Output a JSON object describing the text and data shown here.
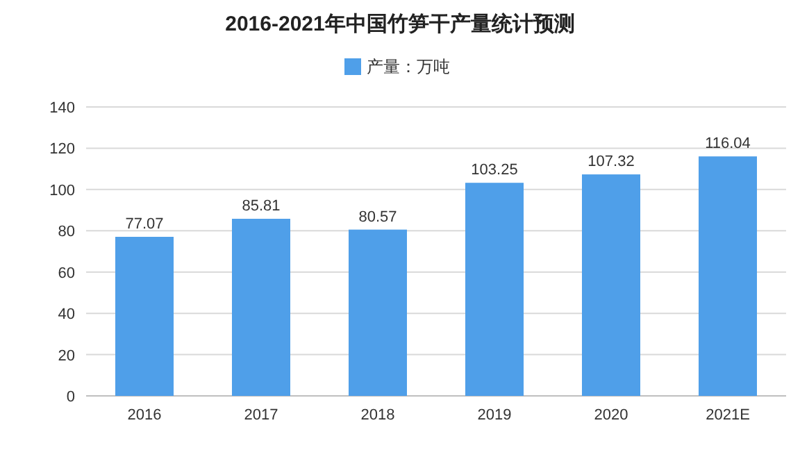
{
  "chart_data": {
    "type": "bar",
    "title": "2016-2021年中国竹笋干产量统计预测",
    "categories": [
      "2016",
      "2017",
      "2018",
      "2019",
      "2020",
      "2021E"
    ],
    "series": [
      {
        "name": "产量：万吨",
        "color": "#4f9fe9",
        "values": [
          77.07,
          85.81,
          80.57,
          103.25,
          107.32,
          116.04
        ]
      }
    ],
    "ylim": [
      0,
      140
    ],
    "yticks": [
      0,
      20,
      40,
      60,
      80,
      100,
      120,
      140
    ],
    "grid": "y",
    "legend": "top",
    "data_labels": true
  }
}
